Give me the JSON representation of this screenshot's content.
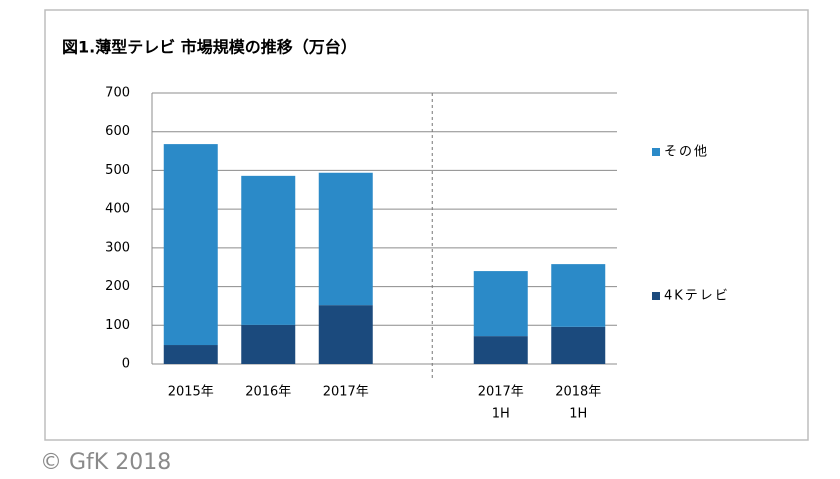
{
  "chart_data": {
    "type": "stacked-bar",
    "title": "図1.薄型テレビ 市場規模の推移（万台）",
    "categories": [
      [
        "2015年"
      ],
      [
        "2016年"
      ],
      [
        "2017年"
      ],
      null,
      [
        "2017年",
        "1H"
      ],
      [
        "2018年",
        "1H"
      ]
    ],
    "series": [
      {
        "name": "4Kテレビ",
        "color": "#1b4a7d",
        "values": [
          49,
          101,
          152,
          null,
          72,
          96
        ]
      },
      {
        "name": "その他",
        "color": "#2b8ac8",
        "values": [
          519,
          385,
          342,
          null,
          168,
          162
        ]
      }
    ],
    "ylim": [
      0,
      700
    ],
    "yticks": [
      0,
      100,
      200,
      300,
      400,
      500,
      600,
      700
    ],
    "grid": true,
    "legend": "right",
    "source": "© GfK 2018"
  }
}
